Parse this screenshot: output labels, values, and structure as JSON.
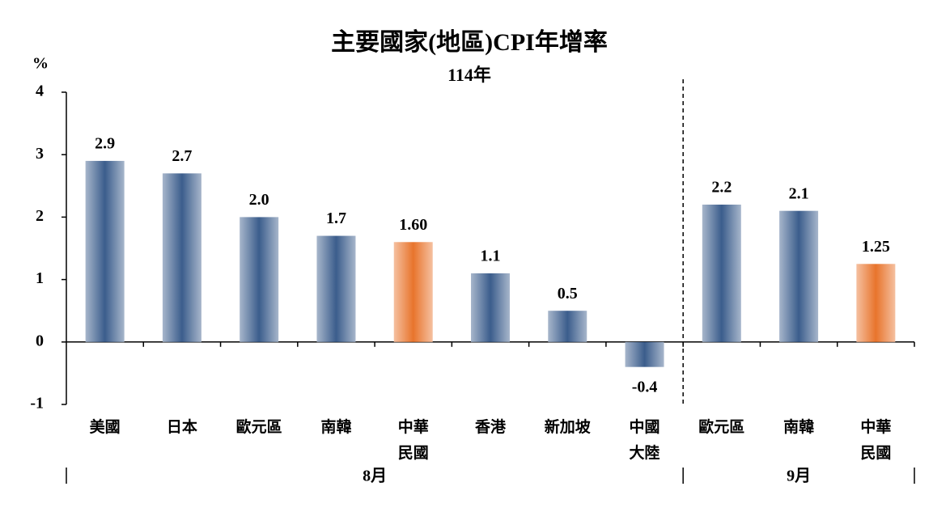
{
  "chart_data": {
    "type": "bar",
    "title": "主要國家(地區)CPI年增率",
    "subtitle": "114年",
    "y_unit": "%",
    "categories": [
      "美國",
      "日本",
      "歐元區",
      "南韓",
      "中華\n民國",
      "香港",
      "新加坡",
      "中國\n大陸",
      "歐元區",
      "南韓",
      "中華\n民國"
    ],
    "values": [
      2.9,
      2.7,
      2.0,
      1.7,
      1.6,
      1.1,
      0.5,
      -0.4,
      2.2,
      2.1,
      1.25
    ],
    "value_labels": [
      "2.9",
      "2.7",
      "2.0",
      "1.7",
      "1.60",
      "1.1",
      "0.5",
      "-0.4",
      "2.2",
      "2.1",
      "1.25"
    ],
    "colors": [
      "#3b5d8c",
      "#3b5d8c",
      "#3b5d8c",
      "#3b5d8c",
      "#e8742c",
      "#3b5d8c",
      "#3b5d8c",
      "#3b5d8c",
      "#3b5d8c",
      "#3b5d8c",
      "#e8742c"
    ],
    "groups": [
      {
        "label": "8月",
        "count": 8
      },
      {
        "label": "9月",
        "count": 3
      }
    ],
    "ylim": [
      -1,
      4
    ],
    "yticks": [
      -1,
      0,
      1,
      2,
      3,
      4
    ],
    "grid": false
  }
}
